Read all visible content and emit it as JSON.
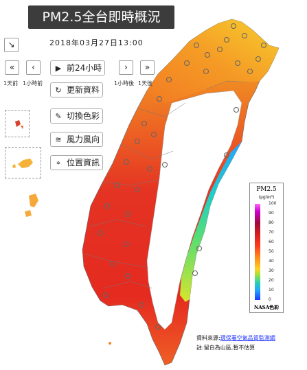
{
  "header": {
    "title": "PM2.5全台即時概況",
    "datetime": "2018年03月27日13:00"
  },
  "nav": {
    "expand_icon": "expand-arrow-icon",
    "buttons": [
      {
        "glyph": "«",
        "caption": "1天前"
      },
      {
        "glyph": "‹",
        "caption": "1小時前"
      },
      {
        "glyph": "›",
        "caption": "1小時後"
      },
      {
        "glyph": "»",
        "caption": "1天後"
      }
    ],
    "play_label": "前24小時"
  },
  "tools": {
    "refresh": "更新資料",
    "palette": "切換色彩",
    "wind": "風力風向",
    "location": "位置資訊"
  },
  "legend": {
    "title": "PM2.5",
    "unit": "(μg/m³)",
    "ticks": [
      "100",
      "90",
      "80",
      "70",
      "60",
      "50",
      "40",
      "30",
      "20",
      "10",
      "0"
    ],
    "footer": "NASA色彩",
    "colors": [
      "#ff66ff",
      "#cc00cc",
      "#a00a3c",
      "#d81e1e",
      "#ff3b1f",
      "#ff8c1a",
      "#ffd21f",
      "#9be23d",
      "#26d0b3",
      "#21a6ff",
      "#1a3cff"
    ]
  },
  "footer": {
    "source_prefix": "資料來源:",
    "source_link": "環保署空氣品質監測網",
    "note": "註:留白為山區,暫不估算"
  },
  "map": {
    "region": "Taiwan",
    "pattern": "Hexagonal PM2.5 interpolation grid, mountains left blank, monitoring stations shown as grey circles"
  }
}
